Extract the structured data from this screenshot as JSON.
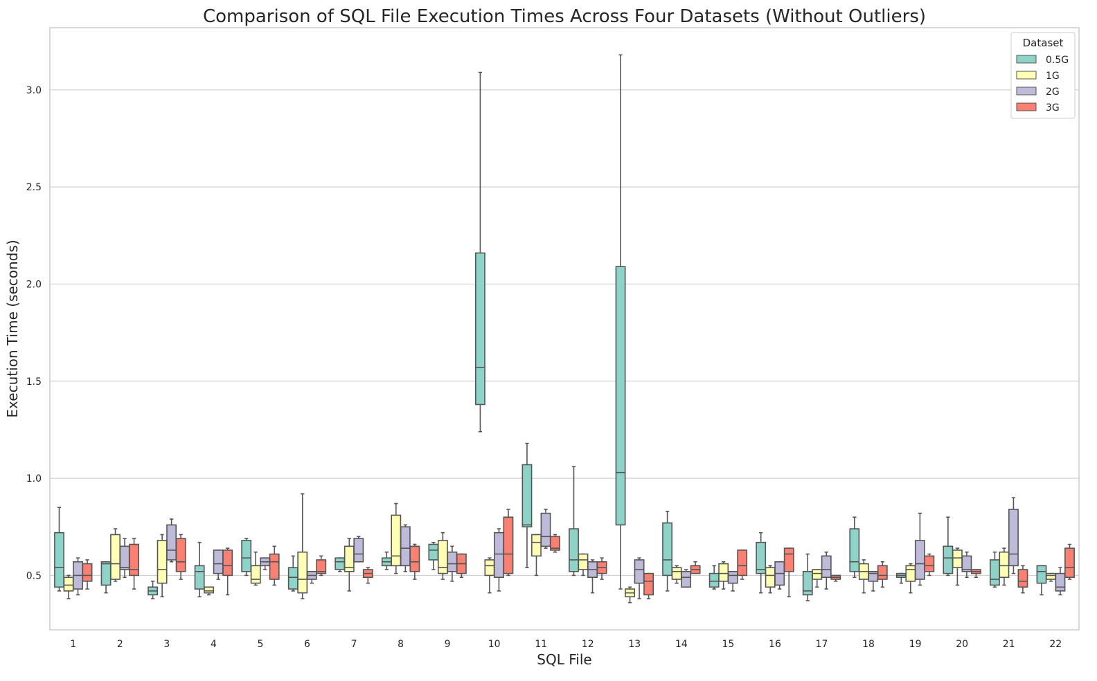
{
  "chart_data": {
    "type": "box",
    "title": "Comparison of SQL File Execution Times Across Four Datasets (Without Outliers)",
    "xlabel": "SQL File",
    "ylabel": "Execution Time (seconds)",
    "ylim": [
      0.22,
      3.32
    ],
    "yticks": [
      "0.5",
      "1.0",
      "1.5",
      "2.0",
      "2.5",
      "3.0"
    ],
    "grid": "y",
    "legend": {
      "title": "Dataset",
      "position": "top-right"
    },
    "categories": [
      "1",
      "2",
      "3",
      "4",
      "5",
      "6",
      "7",
      "8",
      "9",
      "10",
      "11",
      "12",
      "13",
      "14",
      "15",
      "16",
      "17",
      "18",
      "19",
      "20",
      "21",
      "22"
    ],
    "series": [
      {
        "name": "0.5G",
        "color": "#8dd3c7",
        "boxes": [
          [
            0.42,
            0.44,
            0.54,
            0.72,
            0.85
          ],
          [
            0.41,
            0.45,
            0.56,
            0.57,
            0.57
          ],
          [
            0.38,
            0.4,
            0.42,
            0.44,
            0.47
          ],
          [
            0.39,
            0.43,
            0.52,
            0.55,
            0.67
          ],
          [
            0.5,
            0.52,
            0.59,
            0.68,
            0.69
          ],
          [
            0.42,
            0.43,
            0.49,
            0.54,
            0.6
          ],
          [
            0.52,
            0.53,
            0.57,
            0.59,
            0.59
          ],
          [
            0.53,
            0.55,
            0.57,
            0.59,
            0.62
          ],
          [
            0.53,
            0.58,
            0.63,
            0.66,
            0.67
          ],
          [
            1.24,
            1.38,
            1.57,
            2.16,
            3.09
          ],
          [
            0.54,
            0.75,
            0.76,
            1.07,
            1.18
          ],
          [
            0.5,
            0.52,
            0.58,
            0.74,
            1.06
          ],
          [
            0.43,
            0.76,
            1.03,
            2.09,
            3.18
          ],
          [
            0.42,
            0.5,
            0.58,
            0.77,
            0.83
          ],
          [
            0.43,
            0.44,
            0.47,
            0.51,
            0.55
          ],
          [
            0.41,
            0.51,
            0.53,
            0.67,
            0.72
          ],
          [
            0.37,
            0.4,
            0.42,
            0.52,
            0.61
          ],
          [
            0.49,
            0.52,
            0.57,
            0.74,
            0.8
          ],
          [
            0.46,
            0.49,
            0.5,
            0.51,
            0.51
          ],
          [
            0.5,
            0.51,
            0.59,
            0.65,
            0.8
          ],
          [
            0.44,
            0.45,
            0.48,
            0.58,
            0.62
          ],
          [
            0.4,
            0.46,
            0.52,
            0.55,
            0.55
          ]
        ]
      },
      {
        "name": "1G",
        "color": "#ffffb3",
        "boxes": [
          [
            0.38,
            0.42,
            0.45,
            0.49,
            0.5
          ],
          [
            0.47,
            0.48,
            0.56,
            0.71,
            0.74
          ],
          [
            0.39,
            0.46,
            0.53,
            0.68,
            0.71
          ],
          [
            0.4,
            0.41,
            0.42,
            0.44,
            0.44
          ],
          [
            0.45,
            0.46,
            0.48,
            0.55,
            0.62
          ],
          [
            0.38,
            0.41,
            0.48,
            0.62,
            0.92
          ],
          [
            0.42,
            0.52,
            0.54,
            0.65,
            0.69
          ],
          [
            0.51,
            0.55,
            0.6,
            0.81,
            0.87
          ],
          [
            0.48,
            0.51,
            0.54,
            0.68,
            0.72
          ],
          [
            0.41,
            0.5,
            0.55,
            0.58,
            0.59
          ],
          [
            0.5,
            0.6,
            0.67,
            0.71,
            0.71
          ],
          [
            0.5,
            0.53,
            0.58,
            0.61,
            0.61
          ],
          [
            0.36,
            0.39,
            0.41,
            0.43,
            0.44
          ],
          [
            0.46,
            0.48,
            0.52,
            0.54,
            0.55
          ],
          [
            0.43,
            0.47,
            0.51,
            0.56,
            0.57
          ],
          [
            0.41,
            0.44,
            0.5,
            0.54,
            0.55
          ],
          [
            0.44,
            0.48,
            0.51,
            0.53,
            0.53
          ],
          [
            0.41,
            0.48,
            0.52,
            0.56,
            0.58
          ],
          [
            0.41,
            0.47,
            0.53,
            0.55,
            0.56
          ],
          [
            0.45,
            0.54,
            0.59,
            0.63,
            0.64
          ],
          [
            0.45,
            0.49,
            0.55,
            0.62,
            0.64
          ],
          [
            0.47,
            0.48,
            0.5,
            0.51,
            0.51
          ]
        ]
      },
      {
        "name": "2G",
        "color": "#bebada",
        "boxes": [
          [
            0.4,
            0.43,
            0.5,
            0.57,
            0.59
          ],
          [
            0.49,
            0.53,
            0.54,
            0.65,
            0.69
          ],
          [
            0.57,
            0.58,
            0.63,
            0.76,
            0.79
          ],
          [
            0.48,
            0.51,
            0.56,
            0.63,
            0.63
          ],
          [
            0.53,
            0.55,
            0.57,
            0.59,
            0.59
          ],
          [
            0.46,
            0.48,
            0.5,
            0.52,
            0.52
          ],
          [
            0.57,
            0.57,
            0.61,
            0.69,
            0.7
          ],
          [
            0.52,
            0.55,
            0.64,
            0.75,
            0.76
          ],
          [
            0.47,
            0.52,
            0.56,
            0.62,
            0.65
          ],
          [
            0.42,
            0.49,
            0.61,
            0.72,
            0.74
          ],
          [
            0.64,
            0.65,
            0.7,
            0.82,
            0.84
          ],
          [
            0.41,
            0.49,
            0.53,
            0.57,
            0.58
          ],
          [
            0.38,
            0.46,
            0.53,
            0.58,
            0.59
          ],
          [
            0.44,
            0.44,
            0.49,
            0.52,
            0.53
          ],
          [
            0.42,
            0.46,
            0.5,
            0.52,
            0.52
          ],
          [
            0.43,
            0.45,
            0.51,
            0.57,
            0.57
          ],
          [
            0.43,
            0.49,
            0.53,
            0.6,
            0.62
          ],
          [
            0.42,
            0.47,
            0.51,
            0.52,
            0.52
          ],
          [
            0.45,
            0.48,
            0.56,
            0.68,
            0.82
          ],
          [
            0.49,
            0.52,
            0.53,
            0.6,
            0.62
          ],
          [
            0.51,
            0.55,
            0.61,
            0.84,
            0.9
          ],
          [
            0.4,
            0.42,
            0.44,
            0.51,
            0.54
          ]
        ]
      },
      {
        "name": "3G",
        "color": "#fb8072",
        "boxes": [
          [
            0.43,
            0.47,
            0.5,
            0.56,
            0.58
          ],
          [
            0.43,
            0.5,
            0.53,
            0.66,
            0.69
          ],
          [
            0.48,
            0.52,
            0.57,
            0.69,
            0.71
          ],
          [
            0.4,
            0.5,
            0.55,
            0.63,
            0.64
          ],
          [
            0.45,
            0.48,
            0.57,
            0.61,
            0.65
          ],
          [
            0.5,
            0.51,
            0.52,
            0.58,
            0.6
          ],
          [
            0.46,
            0.49,
            0.51,
            0.53,
            0.54
          ],
          [
            0.48,
            0.52,
            0.57,
            0.65,
            0.66
          ],
          [
            0.49,
            0.51,
            0.56,
            0.61,
            0.61
          ],
          [
            0.5,
            0.51,
            0.61,
            0.8,
            0.84
          ],
          [
            0.62,
            0.63,
            0.64,
            0.7,
            0.71
          ],
          [
            0.48,
            0.51,
            0.54,
            0.57,
            0.59
          ],
          [
            0.38,
            0.4,
            0.47,
            0.51,
            0.51
          ],
          [
            0.51,
            0.51,
            0.53,
            0.55,
            0.57
          ],
          [
            0.48,
            0.5,
            0.55,
            0.63,
            0.63
          ],
          [
            0.39,
            0.52,
            0.61,
            0.64,
            0.64
          ],
          [
            0.47,
            0.48,
            0.49,
            0.5,
            0.5
          ],
          [
            0.44,
            0.48,
            0.5,
            0.55,
            0.57
          ],
          [
            0.5,
            0.52,
            0.55,
            0.6,
            0.61
          ],
          [
            0.49,
            0.51,
            0.52,
            0.53,
            0.53
          ],
          [
            0.41,
            0.44,
            0.47,
            0.53,
            0.55
          ],
          [
            0.48,
            0.49,
            0.54,
            0.64,
            0.66
          ]
        ]
      }
    ]
  }
}
